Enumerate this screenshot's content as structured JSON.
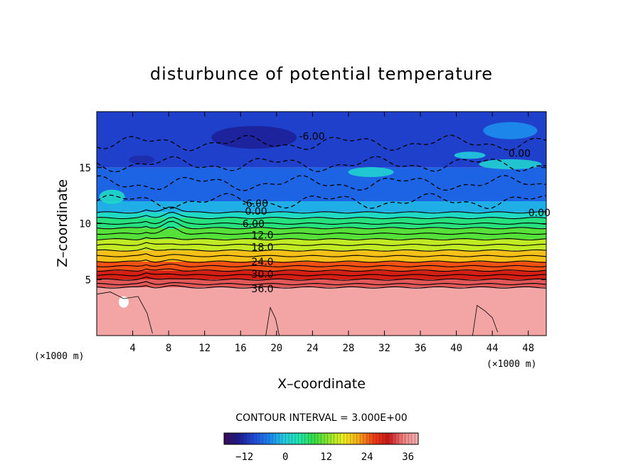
{
  "chart_data": {
    "type": "heatmap",
    "title": "disturbunce of potential temperature",
    "xlabel": "X–coordinate",
    "ylabel": "Z–coordinate",
    "x_unit": "(×1000 m)",
    "y_unit": "(×1000 m)",
    "xlim": [
      0,
      50
    ],
    "ylim": [
      0,
      20
    ],
    "x_ticks": [
      4,
      8,
      12,
      16,
      20,
      24,
      28,
      32,
      36,
      40,
      44,
      48
    ],
    "y_ticks": [
      5,
      10,
      15
    ],
    "contour_interval_text": "CONTOUR INTERVAL = 3.000E+00",
    "contour_labels": [
      {
        "text": "-6.00",
        "x": 22.5,
        "z": 17.8
      },
      {
        "text": "-6.00",
        "x": 16.2,
        "z": 11.8
      },
      {
        "text": "0.00",
        "x": 16.5,
        "z": 11.1
      },
      {
        "text": "6.00",
        "x": 16.2,
        "z": 10.0
      },
      {
        "text": "12.0",
        "x": 17.2,
        "z": 9.0
      },
      {
        "text": "18.0",
        "x": 17.2,
        "z": 7.9
      },
      {
        "text": "24.0",
        "x": 17.2,
        "z": 6.6
      },
      {
        "text": "30.0",
        "x": 17.2,
        "z": 5.5
      },
      {
        "text": "36.0",
        "x": 17.2,
        "z": 4.2
      },
      {
        "text": "0.00",
        "x": 45.8,
        "z": 16.3
      },
      {
        "text": "0.00",
        "x": 48.0,
        "z": 11.0
      }
    ],
    "layers": [
      {
        "z_top": 20.0,
        "z_bottom": 15.0,
        "value": -10
      },
      {
        "z_top": 15.0,
        "z_bottom": 12.0,
        "value": -7
      },
      {
        "z_top": 12.0,
        "z_bottom": 11.0,
        "value": -2
      },
      {
        "z_top": 11.0,
        "z_bottom": 10.5,
        "value": 2
      },
      {
        "z_top": 10.5,
        "z_bottom": 9.6,
        "value": 6
      },
      {
        "z_top": 9.6,
        "z_bottom": 8.6,
        "value": 10
      },
      {
        "z_top": 8.6,
        "z_bottom": 7.6,
        "value": 15
      },
      {
        "z_top": 7.6,
        "z_bottom": 6.6,
        "value": 20
      },
      {
        "z_top": 6.6,
        "z_bottom": 5.8,
        "value": 25
      },
      {
        "z_top": 5.8,
        "z_bottom": 5.0,
        "value": 29
      },
      {
        "z_top": 5.0,
        "z_bottom": 4.3,
        "value": 33
      },
      {
        "z_top": 4.3,
        "z_bottom": 0.0,
        "value": 38
      }
    ],
    "colorbar": {
      "min": -18,
      "max": 39,
      "ticks": [
        -12,
        0,
        12,
        24,
        36
      ],
      "colors": [
        "#3a0a5a",
        "#1c1a8c",
        "#1f48d8",
        "#1a80f0",
        "#22c8e0",
        "#1ee6b0",
        "#32dc46",
        "#8ce628",
        "#f0f020",
        "#f8a814",
        "#f03c14",
        "#c81414",
        "#f08080",
        "#f4b0b0"
      ]
    },
    "grid": false
  }
}
